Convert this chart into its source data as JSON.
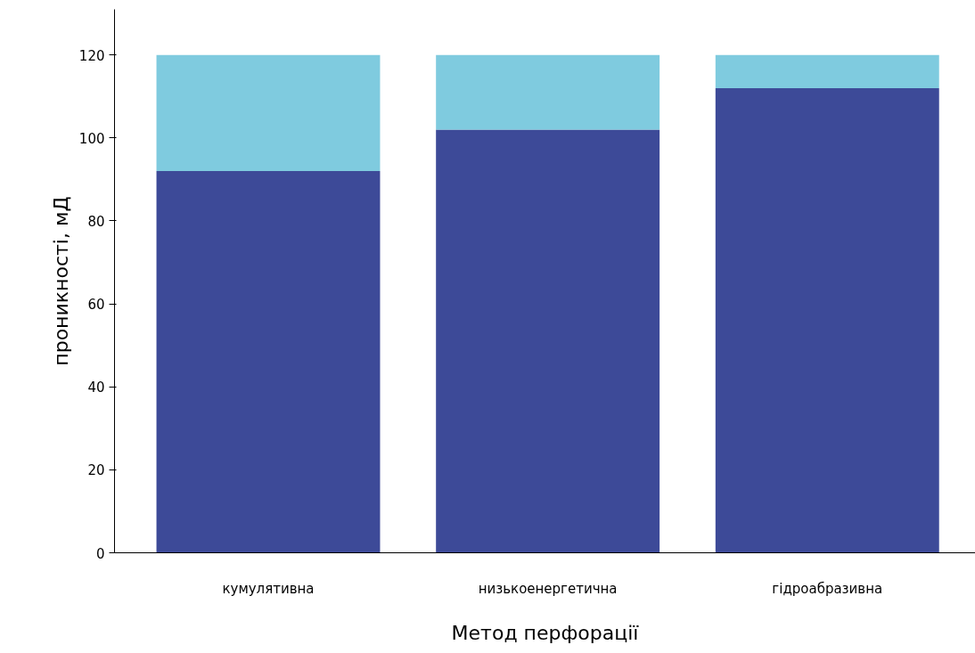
{
  "chart_data": {
    "type": "bar",
    "stacked": true,
    "xlabel": "Метод перфорації",
    "ylabel": "проникності, мД",
    "categories": [
      "кумулятивна",
      "низькоенергетична",
      "гідроабразивна"
    ],
    "series": [
      {
        "color": "#3d4a98",
        "values": [
          92,
          102,
          112
        ]
      },
      {
        "color": "#7fcbdf",
        "values": [
          28,
          18,
          8
        ]
      }
    ],
    "ylim": [
      0,
      131
    ],
    "yticks": [
      0,
      20,
      40,
      60,
      80,
      100,
      120
    ],
    "grid": false
  }
}
